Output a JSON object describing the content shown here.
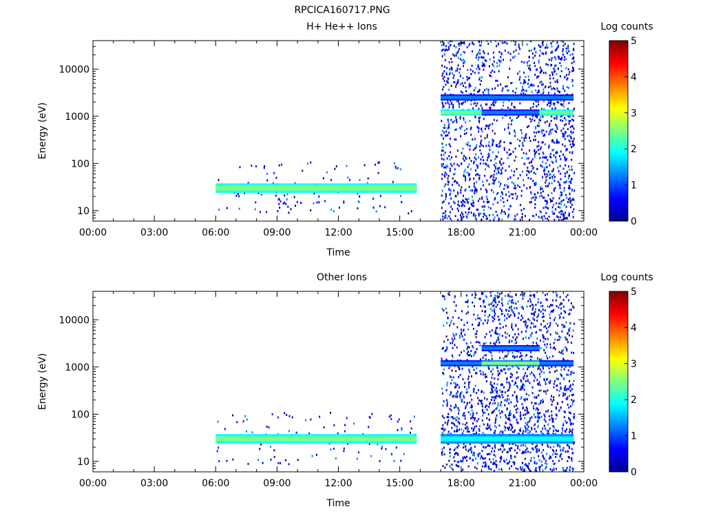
{
  "figure_title": "RPCICA160717.PNG",
  "colorbar": {
    "label": "Log counts",
    "ticks": [
      "0",
      "1",
      "2",
      "3",
      "4",
      "5"
    ],
    "colors": [
      "#00008f",
      "#0000ff",
      "#007fff",
      "#00ffff",
      "#7fff7f",
      "#ffff00",
      "#ff7f00",
      "#ff0000",
      "#7f0000"
    ]
  },
  "chart_data": [
    {
      "type": "heatmap",
      "title": "H+ He++ Ions",
      "xlabel": "Time",
      "ylabel": "Energy (eV)",
      "yscale": "log",
      "xlim": [
        0,
        24
      ],
      "ylim": [
        6,
        40000
      ],
      "x_tick_labels": [
        "00:00",
        "03:00",
        "06:00",
        "09:00",
        "12:00",
        "15:00",
        "18:00",
        "21:00",
        "00:00"
      ],
      "y_tick_labels": [
        "10",
        "100",
        "1000",
        "10000"
      ],
      "colorbar_range": [
        0,
        5
      ],
      "features": [
        {
          "name": "low-energy band",
          "start": "06:00",
          "end": "15:50",
          "energy_eV": 30,
          "log_counts": 2.5
        },
        {
          "name": "high-energy band",
          "start": "17:00",
          "end": "19:00",
          "energy_eV": 1200,
          "log_counts": 2.8
        },
        {
          "name": "high-energy band",
          "start": "19:00",
          "end": "21:50",
          "energy_eV": 1200,
          "log_counts": 1.3
        },
        {
          "name": "high-energy band",
          "start": "21:50",
          "end": "23:30",
          "energy_eV": 1200,
          "log_counts": 2.6
        },
        {
          "name": "secondary band",
          "start": "17:00",
          "end": "23:30",
          "energy_eV": 2500,
          "log_counts": 1.5
        }
      ]
    },
    {
      "type": "heatmap",
      "title": "Other Ions",
      "xlabel": "Time",
      "ylabel": "Energy (eV)",
      "yscale": "log",
      "xlim": [
        0,
        24
      ],
      "ylim": [
        6,
        40000
      ],
      "x_tick_labels": [
        "00:00",
        "03:00",
        "06:00",
        "09:00",
        "12:00",
        "15:00",
        "18:00",
        "21:00",
        "00:00"
      ],
      "y_tick_labels": [
        "10",
        "100",
        "1000",
        "10000"
      ],
      "colorbar_range": [
        0,
        5
      ],
      "features": [
        {
          "name": "low-energy band",
          "start": "06:00",
          "end": "15:50",
          "energy_eV": 30,
          "log_counts": 2.5
        },
        {
          "name": "low-energy band",
          "start": "17:00",
          "end": "23:30",
          "energy_eV": 30,
          "log_counts": 2.0
        },
        {
          "name": "high-energy band",
          "start": "17:00",
          "end": "19:00",
          "energy_eV": 1200,
          "log_counts": 1.5
        },
        {
          "name": "high-energy band",
          "start": "19:00",
          "end": "21:50",
          "energy_eV": 1200,
          "log_counts": 2.2
        },
        {
          "name": "high-energy band",
          "start": "21:50",
          "end": "23:30",
          "energy_eV": 1200,
          "log_counts": 1.5
        },
        {
          "name": "secondary band",
          "start": "19:00",
          "end": "21:50",
          "energy_eV": 2500,
          "log_counts": 1.5
        }
      ]
    }
  ]
}
